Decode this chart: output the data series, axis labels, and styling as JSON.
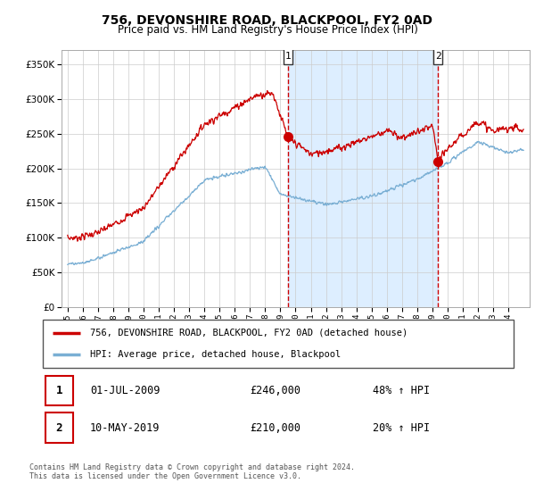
{
  "title": "756, DEVONSHIRE ROAD, BLACKPOOL, FY2 0AD",
  "subtitle": "Price paid vs. HM Land Registry's House Price Index (HPI)",
  "legend_line1": "756, DEVONSHIRE ROAD, BLACKPOOL, FY2 0AD (detached house)",
  "legend_line2": "HPI: Average price, detached house, Blackpool",
  "marker1_date": "01-JUL-2009",
  "marker1_price": 246000,
  "marker1_label": "48% ↑ HPI",
  "marker2_date": "10-MAY-2019",
  "marker2_price": 210000,
  "marker2_label": "20% ↑ HPI",
  "footer1": "Contains HM Land Registry data © Crown copyright and database right 2024.",
  "footer2": "This data is licensed under the Open Government Licence v3.0.",
  "ylim": [
    0,
    370000
  ],
  "yticks": [
    0,
    50000,
    100000,
    150000,
    200000,
    250000,
    300000,
    350000
  ],
  "red_color": "#cc0000",
  "blue_color": "#7aafd4",
  "shade_color": "#ddeeff",
  "marker1_x": 2009.5,
  "marker2_x": 2019.37,
  "background_color": "#ffffff",
  "grid_color": "#cccccc",
  "xlim_left": 1994.6,
  "xlim_right": 2025.4
}
